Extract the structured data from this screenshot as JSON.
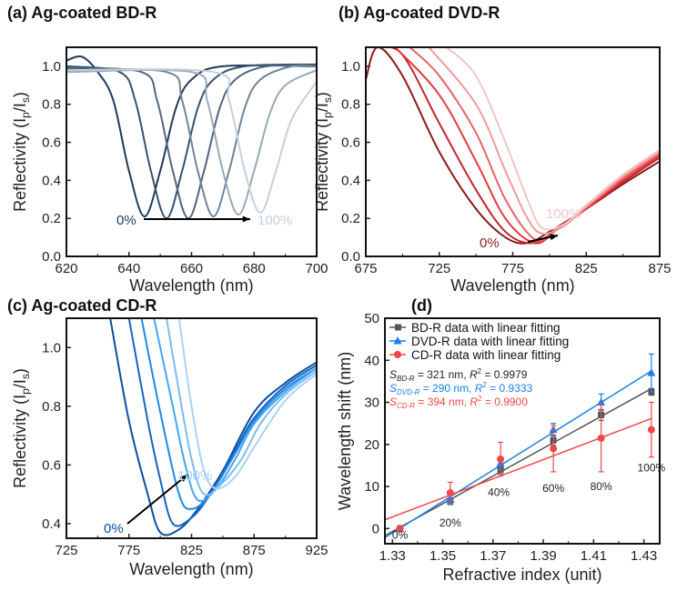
{
  "chart_data": [
    {
      "type": "line",
      "title": "(a) Ag-coated BD-R",
      "xlabel": "Wavelength (nm)",
      "ylabel": "Reflectivity (Ip/Is)",
      "xlim": [
        620,
        700
      ],
      "ylim": [
        0,
        1.1
      ],
      "xticks": [
        620,
        640,
        660,
        680,
        700
      ],
      "yticks": [
        0.0,
        0.2,
        0.4,
        0.6,
        0.8,
        1.0
      ],
      "annotation_start": "0%",
      "annotation_end": "100%",
      "series": [
        {
          "color": "#1f3a5a",
          "points": [
            [
              620,
              1.03
            ],
            [
              625,
              1.05
            ],
            [
              630,
              0.97
            ],
            [
              635,
              0.82
            ],
            [
              640,
              0.45
            ],
            [
              645,
              0.21
            ],
            [
              650,
              0.45
            ],
            [
              655,
              0.78
            ],
            [
              660,
              0.93
            ],
            [
              670,
              1.0
            ],
            [
              700,
              1.0
            ]
          ]
        },
        {
          "color": "#34536f",
          "points": [
            [
              620,
              1.0
            ],
            [
              637,
              0.97
            ],
            [
              642,
              0.82
            ],
            [
              647,
              0.45
            ],
            [
              652,
              0.2
            ],
            [
              657,
              0.45
            ],
            [
              662,
              0.78
            ],
            [
              667,
              0.93
            ],
            [
              677,
              1.0
            ],
            [
              700,
              1.01
            ]
          ]
        },
        {
          "color": "#4d6681",
          "points": [
            [
              620,
              0.99
            ],
            [
              644,
              0.97
            ],
            [
              649,
              0.82
            ],
            [
              654,
              0.45
            ],
            [
              659,
              0.2
            ],
            [
              664,
              0.45
            ],
            [
              669,
              0.78
            ],
            [
              674,
              0.93
            ],
            [
              684,
              1.0
            ],
            [
              700,
              1.0
            ]
          ]
        },
        {
          "color": "#6e8499",
          "points": [
            [
              620,
              0.98
            ],
            [
              652,
              0.97
            ],
            [
              657,
              0.82
            ],
            [
              662,
              0.45
            ],
            [
              667,
              0.21
            ],
            [
              672,
              0.45
            ],
            [
              677,
              0.78
            ],
            [
              682,
              0.93
            ],
            [
              692,
              1.0
            ],
            [
              700,
              1.0
            ]
          ]
        },
        {
          "color": "#97a9ba",
          "points": [
            [
              620,
              0.97
            ],
            [
              660,
              0.97
            ],
            [
              665,
              0.82
            ],
            [
              670,
              0.45
            ],
            [
              675,
              0.22
            ],
            [
              680,
              0.45
            ],
            [
              685,
              0.75
            ],
            [
              690,
              0.9
            ],
            [
              700,
              0.98
            ]
          ]
        },
        {
          "color": "#c5d0da",
          "points": [
            [
              620,
              0.98
            ],
            [
              667,
              0.97
            ],
            [
              672,
              0.82
            ],
            [
              677,
              0.45
            ],
            [
              682,
              0.23
            ],
            [
              687,
              0.45
            ],
            [
              692,
              0.72
            ],
            [
              700,
              0.92
            ]
          ]
        }
      ]
    },
    {
      "type": "line",
      "title": "(b) Ag-coated DVD-R",
      "xlabel": "Wavelength (nm)",
      "ylabel": "Reflectivity (Ip/Is)",
      "xlim": [
        675,
        875
      ],
      "ylim": [
        0,
        1.1
      ],
      "xticks": [
        675,
        725,
        775,
        825,
        875
      ],
      "yticks": [
        0.0,
        0.2,
        0.4,
        0.6,
        0.8,
        1.0
      ],
      "annotation_start": "0%",
      "annotation_end": "100%",
      "series": [
        {
          "color": "#8b1a1a",
          "points": [
            [
              675,
              0.93
            ],
            [
              683,
              1.1
            ],
            [
              700,
              0.95
            ],
            [
              725,
              0.55
            ],
            [
              750,
              0.25
            ],
            [
              770,
              0.1
            ],
            [
              785,
              0.07
            ],
            [
              800,
              0.13
            ],
            [
              825,
              0.25
            ],
            [
              850,
              0.38
            ],
            [
              875,
              0.5
            ]
          ]
        },
        {
          "color": "#c0262c",
          "points": [
            [
              683,
              1.1
            ],
            [
              700,
              1.06
            ],
            [
              725,
              0.7
            ],
            [
              750,
              0.35
            ],
            [
              770,
              0.13
            ],
            [
              788,
              0.07
            ],
            [
              805,
              0.14
            ],
            [
              825,
              0.25
            ],
            [
              850,
              0.39
            ],
            [
              875,
              0.52
            ]
          ]
        },
        {
          "color": "#e03a3e",
          "points": [
            [
              695,
              1.1
            ],
            [
              725,
              0.85
            ],
            [
              750,
              0.5
            ],
            [
              770,
              0.2
            ],
            [
              790,
              0.07
            ],
            [
              805,
              0.14
            ],
            [
              825,
              0.25
            ],
            [
              850,
              0.4
            ],
            [
              875,
              0.53
            ]
          ]
        },
        {
          "color": "#ea6266",
          "points": [
            [
              705,
              1.1
            ],
            [
              725,
              0.95
            ],
            [
              750,
              0.65
            ],
            [
              770,
              0.3
            ],
            [
              790,
              0.09
            ],
            [
              805,
              0.14
            ],
            [
              825,
              0.26
            ],
            [
              850,
              0.41
            ],
            [
              875,
              0.54
            ]
          ]
        },
        {
          "color": "#f29a9c",
          "points": [
            [
              718,
              1.1
            ],
            [
              750,
              0.8
            ],
            [
              770,
              0.45
            ],
            [
              785,
              0.2
            ],
            [
              795,
              0.12
            ],
            [
              810,
              0.16
            ],
            [
              825,
              0.26
            ],
            [
              850,
              0.42
            ],
            [
              875,
              0.55
            ]
          ]
        },
        {
          "color": "#f8c4c5",
          "points": [
            [
              730,
              1.1
            ],
            [
              750,
              0.95
            ],
            [
              770,
              0.6
            ],
            [
              785,
              0.3
            ],
            [
              795,
              0.15
            ],
            [
              810,
              0.17
            ],
            [
              825,
              0.27
            ],
            [
              850,
              0.43
            ],
            [
              875,
              0.56
            ]
          ]
        }
      ]
    },
    {
      "type": "line",
      "title": "(c) Ag-coated CD-R",
      "xlabel": "Wavelength (nm)",
      "ylabel": "Reflectivity (Ip/Is)",
      "xlim": [
        725,
        925
      ],
      "ylim": [
        0.35,
        1.1
      ],
      "xticks": [
        725,
        775,
        825,
        875,
        925
      ],
      "yticks": [
        0.4,
        0.6,
        0.8,
        1.0
      ],
      "annotation_start": "0%",
      "annotation_end": "100%",
      "series": [
        {
          "color": "#0b4ea2",
          "points": [
            [
              760,
              1.1
            ],
            [
              775,
              0.75
            ],
            [
              790,
              0.5
            ],
            [
              800,
              0.37
            ],
            [
              815,
              0.38
            ],
            [
              830,
              0.45
            ],
            [
              850,
              0.58
            ],
            [
              875,
              0.78
            ],
            [
              900,
              0.88
            ],
            [
              925,
              0.95
            ]
          ]
        },
        {
          "color": "#1565c0",
          "points": [
            [
              775,
              1.1
            ],
            [
              790,
              0.75
            ],
            [
              800,
              0.55
            ],
            [
              810,
              0.4
            ],
            [
              825,
              0.42
            ],
            [
              840,
              0.5
            ],
            [
              860,
              0.65
            ],
            [
              875,
              0.76
            ],
            [
              900,
              0.87
            ],
            [
              925,
              0.94
            ]
          ]
        },
        {
          "color": "#1e88e5",
          "points": [
            [
              785,
              1.1
            ],
            [
              800,
              0.78
            ],
            [
              815,
              0.5
            ],
            [
              825,
              0.45
            ],
            [
              840,
              0.5
            ],
            [
              860,
              0.64
            ],
            [
              875,
              0.75
            ],
            [
              900,
              0.86
            ],
            [
              925,
              0.93
            ]
          ]
        },
        {
          "color": "#42a5f5",
          "points": [
            [
              795,
              1.1
            ],
            [
              810,
              0.8
            ],
            [
              820,
              0.6
            ],
            [
              830,
              0.48
            ],
            [
              845,
              0.52
            ],
            [
              860,
              0.62
            ],
            [
              875,
              0.74
            ],
            [
              900,
              0.85
            ],
            [
              925,
              0.93
            ]
          ]
        },
        {
          "color": "#7cbcf0",
          "points": [
            [
              805,
              1.1
            ],
            [
              815,
              0.85
            ],
            [
              825,
              0.62
            ],
            [
              835,
              0.5
            ],
            [
              850,
              0.54
            ],
            [
              865,
              0.62
            ],
            [
              880,
              0.74
            ],
            [
              900,
              0.84
            ],
            [
              925,
              0.92
            ]
          ]
        },
        {
          "color": "#a9d2f5",
          "points": [
            [
              815,
              1.1
            ],
            [
              825,
              0.8
            ],
            [
              835,
              0.58
            ],
            [
              845,
              0.52
            ],
            [
              860,
              0.56
            ],
            [
              875,
              0.66
            ],
            [
              900,
              0.82
            ],
            [
              925,
              0.91
            ]
          ]
        }
      ]
    },
    {
      "type": "scatter",
      "title": "(d)",
      "xlabel": "Refractive index (unit)",
      "ylabel": "Wavelength shift (nm)",
      "xlim": [
        1.327,
        1.4363
      ],
      "ylim": [
        -3.6,
        50
      ],
      "xticks": [
        1.33,
        1.35,
        1.37,
        1.39,
        1.41,
        1.43
      ],
      "yticks": [
        0,
        10,
        20,
        30,
        40,
        50
      ],
      "x": [
        1.333,
        1.353,
        1.373,
        1.394,
        1.413,
        1.433
      ],
      "point_labels": [
        "0%",
        "20%",
        "40%",
        "60%",
        "80%",
        "100%"
      ],
      "legend_placement": "top-left",
      "series": [
        {
          "name": "BD-R data with linear fitting",
          "color": "#555555",
          "marker": "square",
          "values": [
            0,
            6.5,
            14,
            21,
            27,
            32.5
          ],
          "errors": [
            0.3,
            0.8,
            1.0,
            1.2,
            1.3,
            0.8
          ],
          "fit_note": {
            "symbol": "S",
            "sub": "BD-R",
            "text": " = 321 nm, ",
            "r2": " = 0.9979"
          }
        },
        {
          "name": "DVD-R data with linear fitting",
          "color": "#1a7fe8",
          "marker": "triangle",
          "values": [
            0,
            7,
            15.5,
            23.5,
            30,
            37
          ],
          "errors": [
            0.3,
            1.2,
            1.5,
            1.5,
            2.0,
            4.5
          ],
          "fit_note": {
            "symbol": "S",
            "sub": "DVD-R",
            "text": " = 290 nm, ",
            "r2": " = 0.9333"
          }
        },
        {
          "name": "CD-R data with linear fitting",
          "color": "#f04848",
          "marker": "circle",
          "values": [
            0,
            8.5,
            16.5,
            19,
            21.5,
            23.5
          ],
          "errors": [
            0.3,
            2.5,
            4.0,
            5.5,
            8.0,
            6.5
          ],
          "fit_note": {
            "symbol": "S",
            "sub": "CD-R",
            "text": " = 394 nm, ",
            "r2": " = 0.9900"
          }
        }
      ]
    }
  ]
}
